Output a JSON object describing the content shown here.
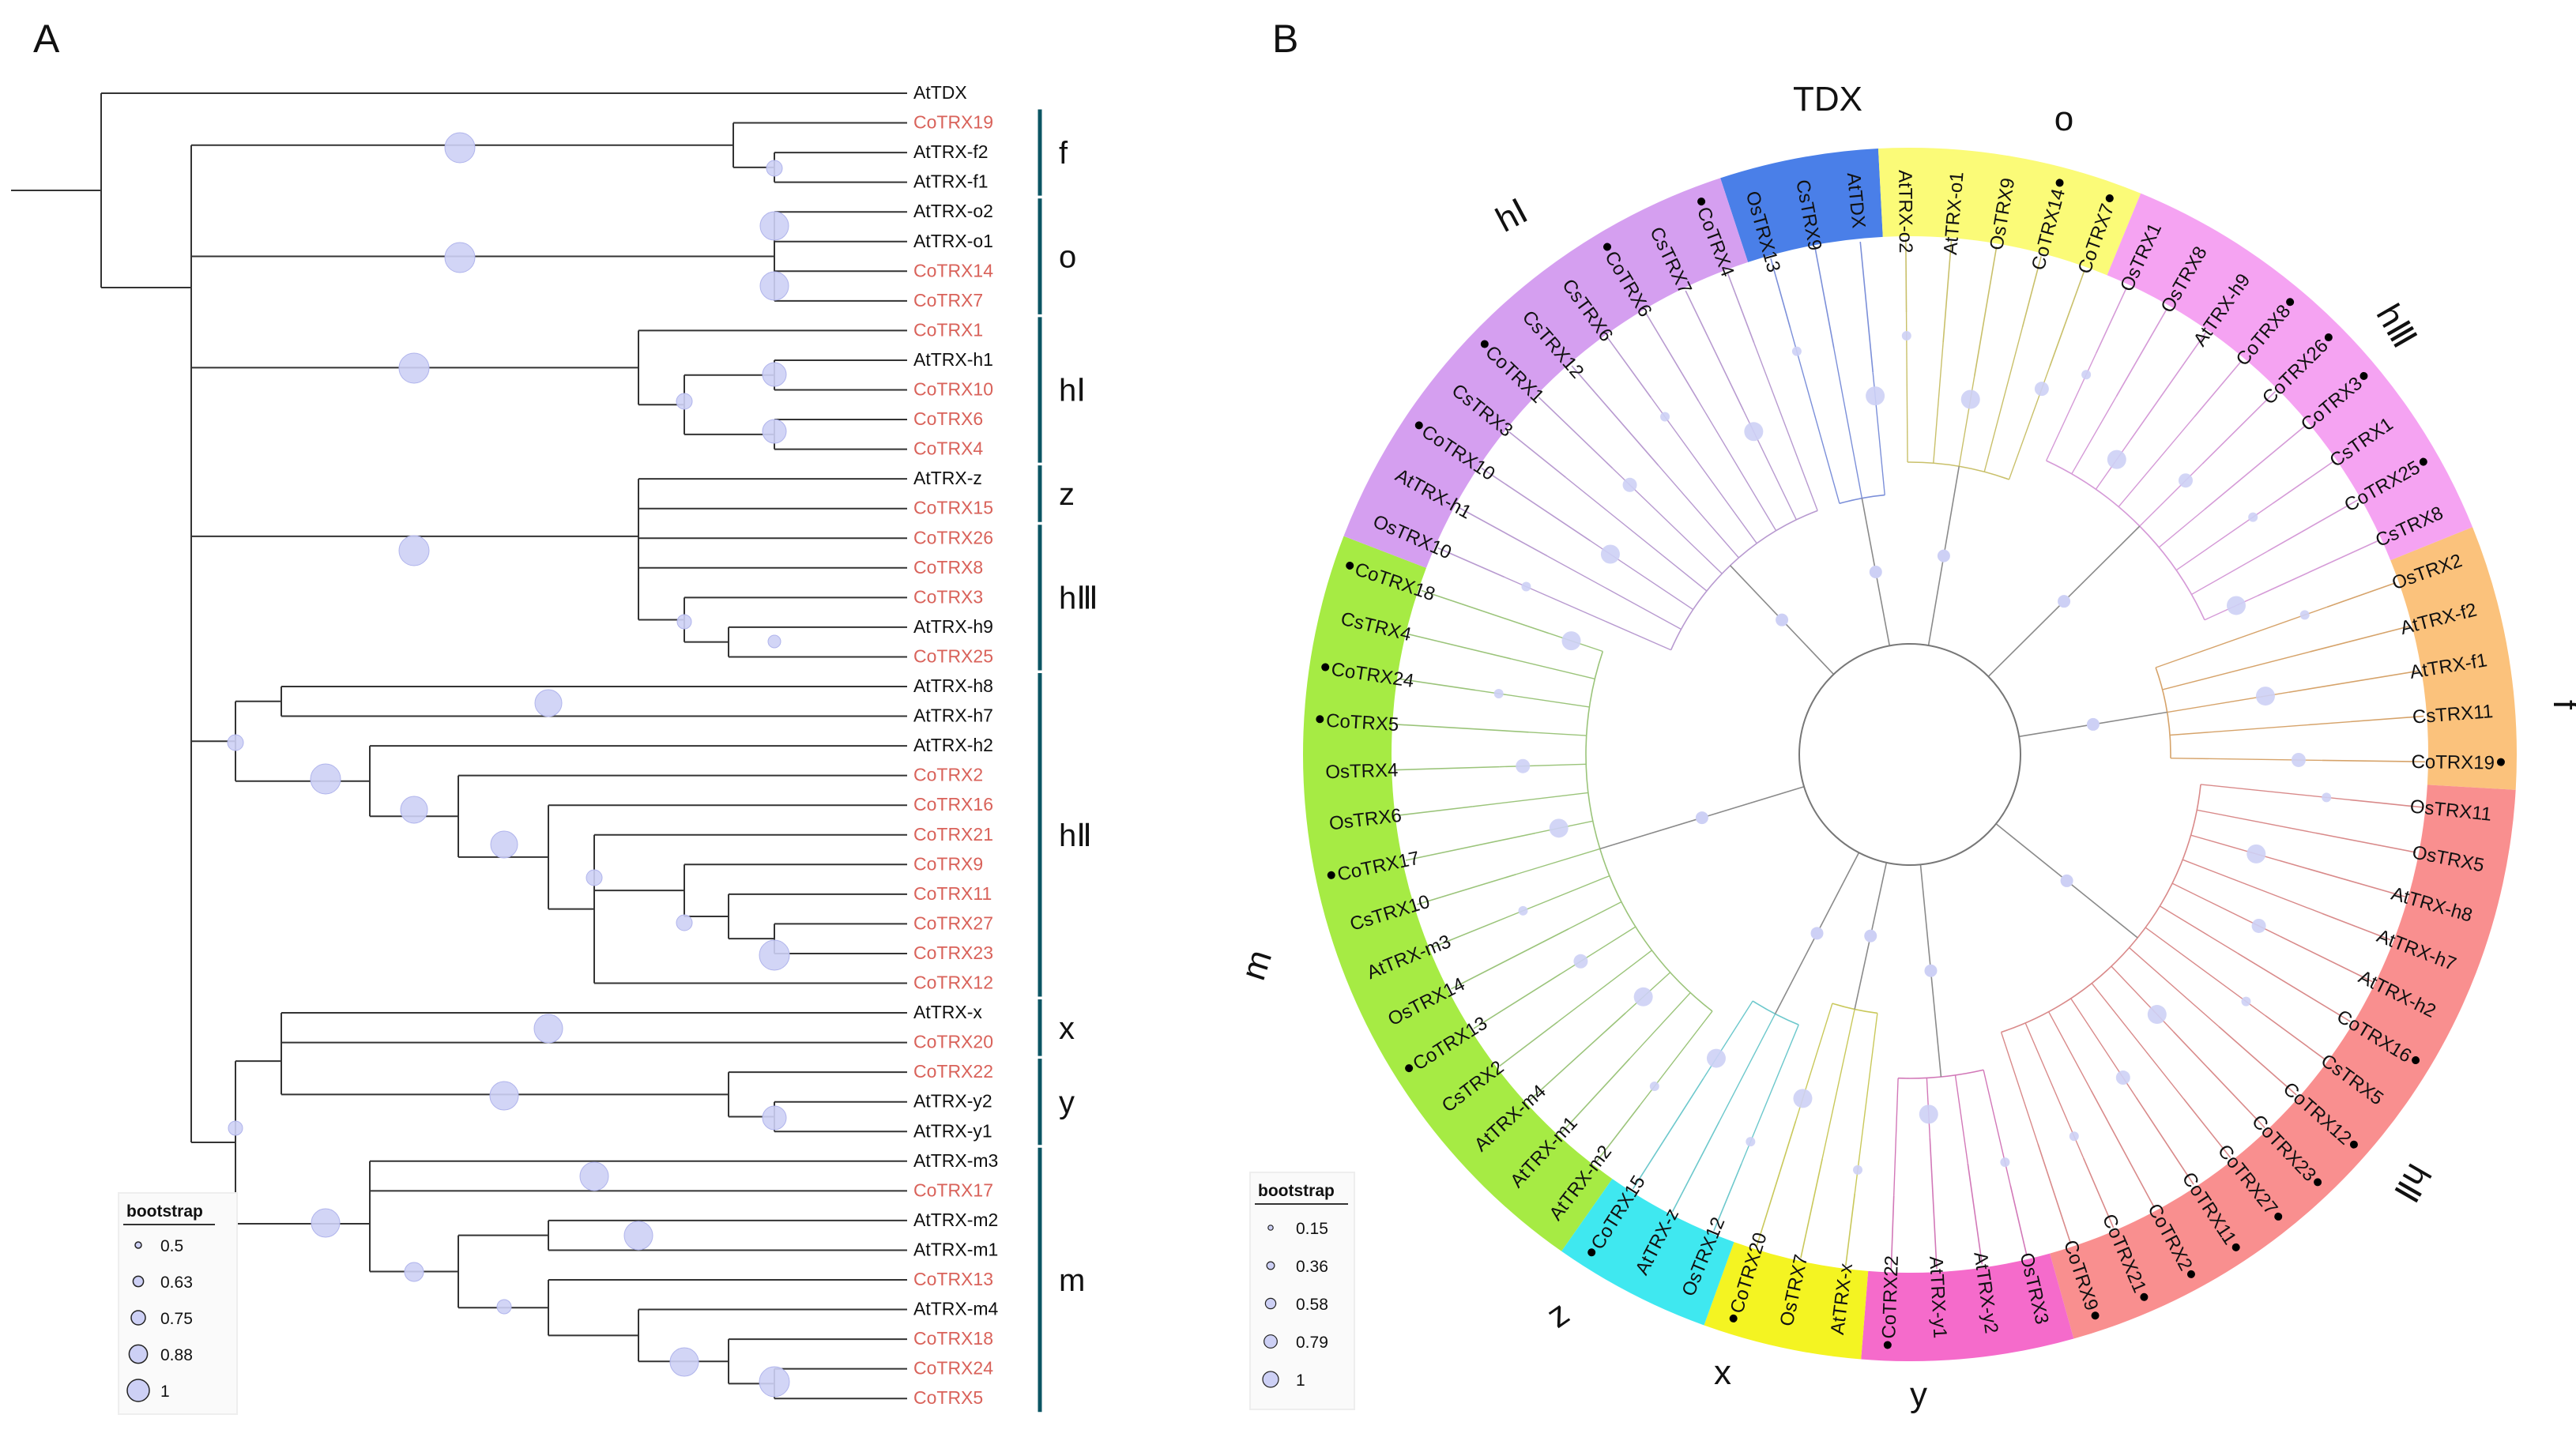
{
  "panel_a": {
    "label": "A",
    "leaves": [
      {
        "name": "AtTDX",
        "co": false
      },
      {
        "name": "CoTRX19",
        "co": true
      },
      {
        "name": "AtTRX-f2",
        "co": false
      },
      {
        "name": "AtTRX-f1",
        "co": false
      },
      {
        "name": "AtTRX-o2",
        "co": false
      },
      {
        "name": "AtTRX-o1",
        "co": false
      },
      {
        "name": "CoTRX14",
        "co": true
      },
      {
        "name": "CoTRX7",
        "co": true
      },
      {
        "name": "CoTRX1",
        "co": true
      },
      {
        "name": "AtTRX-h1",
        "co": false
      },
      {
        "name": "CoTRX10",
        "co": true
      },
      {
        "name": "CoTRX6",
        "co": true
      },
      {
        "name": "CoTRX4",
        "co": true
      },
      {
        "name": "AtTRX-z",
        "co": false
      },
      {
        "name": "CoTRX15",
        "co": true
      },
      {
        "name": "CoTRX26",
        "co": true
      },
      {
        "name": "CoTRX8",
        "co": true
      },
      {
        "name": "CoTRX3",
        "co": true
      },
      {
        "name": "AtTRX-h9",
        "co": false
      },
      {
        "name": "CoTRX25",
        "co": true
      },
      {
        "name": "AtTRX-h8",
        "co": false
      },
      {
        "name": "AtTRX-h7",
        "co": false
      },
      {
        "name": "AtTRX-h2",
        "co": false
      },
      {
        "name": "CoTRX2",
        "co": true
      },
      {
        "name": "CoTRX16",
        "co": true
      },
      {
        "name": "CoTRX21",
        "co": true
      },
      {
        "name": "CoTRX9",
        "co": true
      },
      {
        "name": "CoTRX11",
        "co": true
      },
      {
        "name": "CoTRX27",
        "co": true
      },
      {
        "name": "CoTRX23",
        "co": true
      },
      {
        "name": "CoTRX12",
        "co": true
      },
      {
        "name": "AtTRX-x",
        "co": false
      },
      {
        "name": "CoTRX20",
        "co": true
      },
      {
        "name": "CoTRX22",
        "co": true
      },
      {
        "name": "AtTRX-y2",
        "co": false
      },
      {
        "name": "AtTRX-y1",
        "co": false
      },
      {
        "name": "AtTRX-m3",
        "co": false
      },
      {
        "name": "CoTRX17",
        "co": true
      },
      {
        "name": "AtTRX-m2",
        "co": false
      },
      {
        "name": "AtTRX-m1",
        "co": false
      },
      {
        "name": "CoTRX13",
        "co": true
      },
      {
        "name": "AtTRX-m4",
        "co": false
      },
      {
        "name": "CoTRX18",
        "co": true
      },
      {
        "name": "CoTRX24",
        "co": true
      },
      {
        "name": "CoTRX5",
        "co": true
      }
    ],
    "groups": [
      {
        "label": "f",
        "from": 1,
        "to": 3
      },
      {
        "label": "o",
        "from": 4,
        "to": 7
      },
      {
        "label": "hⅠ",
        "from": 8,
        "to": 12
      },
      {
        "label": "z",
        "from": 13,
        "to": 14
      },
      {
        "label": "hⅢ",
        "from": 15,
        "to": 19
      },
      {
        "label": "hⅡ",
        "from": 20,
        "to": 30
      },
      {
        "label": "x",
        "from": 31,
        "to": 32
      },
      {
        "label": "y",
        "from": 33,
        "to": 35
      },
      {
        "label": "m",
        "from": 36,
        "to": 44
      }
    ],
    "legend": {
      "title": "bootstrap",
      "items": [
        {
          "label": "0.5",
          "value": 0.5
        },
        {
          "label": "0.63",
          "value": 0.63
        },
        {
          "label": "0.75",
          "value": 0.75
        },
        {
          "label": "0.88",
          "value": 0.88
        },
        {
          "label": "1",
          "value": 1
        }
      ]
    }
  },
  "panel_b": {
    "label": "B",
    "groups": [
      {
        "label": "TDX",
        "color": "#4a7fe8",
        "leaves": [
          "OsTRX13",
          "CsTRX9",
          "AtTDX"
        ]
      },
      {
        "label": "o",
        "color": "#fbfb78",
        "leaves": [
          "AtTRX-o2",
          "AtTRX-o1",
          "OsTRX9",
          "CoTRX14",
          "CoTRX7"
        ]
      },
      {
        "label": "hⅢ",
        "color": "#f5a3f2",
        "leaves": [
          "OsTRX1",
          "OsTRX8",
          "AtTRX-h9",
          "CoTRX8",
          "CoTRX26",
          "CoTRX3",
          "CsTRX1",
          "CoTRX25",
          "CsTRX8"
        ]
      },
      {
        "label": "f",
        "color": "#fbc27c",
        "leaves": [
          "OsTRX2",
          "AtTRX-f2",
          "AtTRX-f1",
          "CsTRX11",
          "CoTRX19"
        ]
      },
      {
        "label": "hⅡ",
        "color": "#f98f8f",
        "leaves": [
          "OsTRX11",
          "OsTRX5",
          "AtTRX-h8",
          "AtTRX-h7",
          "AtTRX-h2",
          "CoTRX16",
          "CsTRX5",
          "CoTRX12",
          "CoTRX23",
          "CoTRX27",
          "CoTRX11",
          "CoTRX2",
          "CoTRX21",
          "CoTRX9"
        ]
      },
      {
        "label": "y",
        "color": "#f56bcb",
        "leaves": [
          "OsTRX3",
          "AtTRX-y2",
          "AtTRX-y1",
          "CoTRX22"
        ]
      },
      {
        "label": "x",
        "color": "#f4f422",
        "leaves": [
          "AtTRX-x",
          "OsTRX7",
          "CoTRX20"
        ]
      },
      {
        "label": "z",
        "color": "#3fe8f0",
        "leaves": [
          "OsTRX12",
          "AtTRX-z",
          "CoTRX15"
        ]
      },
      {
        "label": "m",
        "color": "#a6eb44",
        "leaves": [
          "AtTRX-m2",
          "AtTRX-m1",
          "AtTRX-m4",
          "CsTRX2",
          "CoTRX13",
          "OsTRX14",
          "AtTRX-m3",
          "CsTRX10",
          "CoTRX17",
          "OsTRX6",
          "OsTRX4",
          "CoTRX5",
          "CoTRX24",
          "CsTRX4",
          "CoTRX18"
        ]
      },
      {
        "label": "hⅠ",
        "color": "#d59ff0",
        "leaves": [
          "OsTRX10",
          "AtTRX-h1",
          "CoTRX10",
          "CsTRX3",
          "CoTRX1",
          "CsTRX12",
          "CsTRX6",
          "CoTRX6",
          "CsTRX7",
          "CoTRX4"
        ]
      }
    ],
    "legend": {
      "title": "bootstrap",
      "items": [
        {
          "label": "0.15",
          "value": 0.15
        },
        {
          "label": "0.36",
          "value": 0.36
        },
        {
          "label": "0.58",
          "value": 0.58
        },
        {
          "label": "0.79",
          "value": 0.79
        },
        {
          "label": "1",
          "value": 1
        }
      ]
    }
  },
  "colors": {
    "co_label": "#d9625a",
    "other_label": "#111111",
    "branch": "#333333",
    "bar": "#0b5563",
    "bubble_fill": "#cdd0f5",
    "bubble_stroke": "#b0b4ec"
  }
}
